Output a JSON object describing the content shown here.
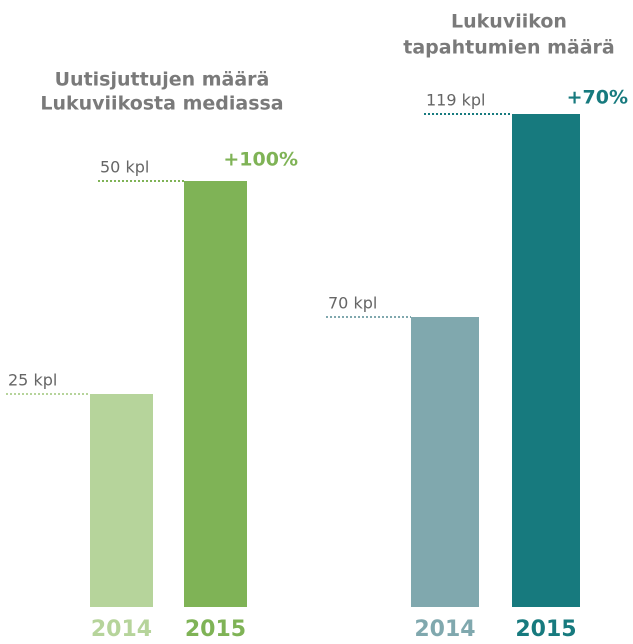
{
  "chart_data": [
    {
      "type": "bar",
      "title": [
        "Uutisjuttujen määrä",
        "Lukuviikosta mediassa"
      ],
      "categories": [
        "2014",
        "2015"
      ],
      "values": [
        25,
        50
      ],
      "value_labels": [
        "25 kpl",
        "50 kpl"
      ],
      "colors": [
        "#b6d49b",
        "#7fb356"
      ],
      "annotation": "+100%",
      "annotation_color": "#7fb356"
    },
    {
      "type": "bar",
      "title": [
        "Lukuviikon",
        "tapahtumien määrä"
      ],
      "categories": [
        "2014",
        "2015"
      ],
      "values": [
        70,
        119
      ],
      "value_labels": [
        "70 kpl",
        "119 kpl"
      ],
      "colors": [
        "#80a8ae",
        "#177a7e"
      ],
      "annotation": "+70%",
      "annotation_color": "#177a7e"
    }
  ]
}
